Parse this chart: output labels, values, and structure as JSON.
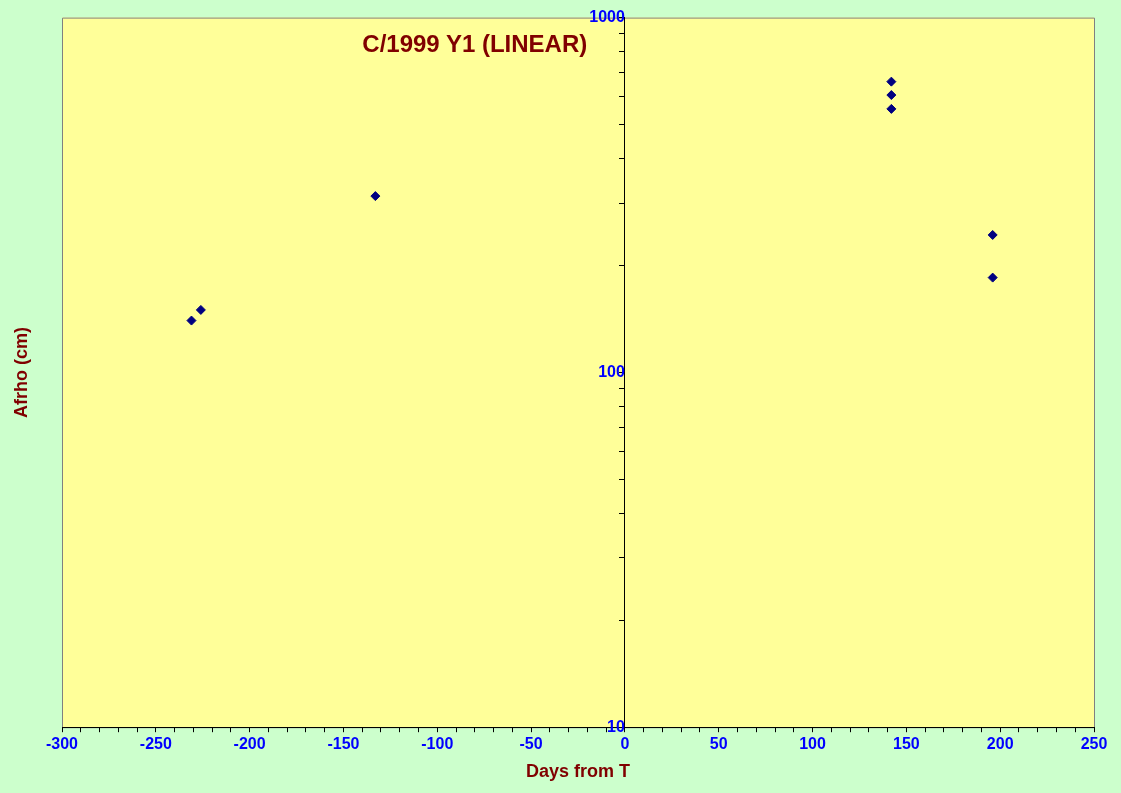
{
  "chart_data": {
    "type": "scatter",
    "title": "C/1999 Y1 (LINEAR)",
    "xlabel": "Days from T",
    "ylabel": "Afrho (cm)",
    "series": [
      {
        "color": "#000080",
        "x": [
          -231,
          -226,
          -133,
          142,
          142,
          142,
          196,
          196
        ],
        "values": [
          140,
          150,
          314,
          660,
          605,
          553,
          244,
          185
        ]
      }
    ],
    "xlim": [
      -300,
      250
    ],
    "xticks": [
      -300,
      {
        "value": -290,
        "label": null
      },
      {
        "value": -280,
        "label": null
      },
      {
        "value": -270,
        "label": null
      },
      {
        "value": -260,
        "label": null
      },
      -250,
      {
        "value": -240,
        "label": null
      },
      {
        "value": -230,
        "label": null
      },
      {
        "value": -220,
        "label": null
      },
      {
        "value": -210,
        "label": null
      },
      -200,
      {
        "value": -190,
        "label": null
      },
      {
        "value": -180,
        "label": null
      },
      {
        "value": -170,
        "label": null
      },
      {
        "value": -160,
        "label": null
      },
      -150,
      {
        "value": -140,
        "label": null
      },
      {
        "value": -130,
        "label": null
      },
      {
        "value": -120,
        "label": null
      },
      {
        "value": -110,
        "label": null
      },
      -100,
      {
        "value": -90,
        "label": null
      },
      {
        "value": -80,
        "label": null
      },
      {
        "value": -70,
        "label": null
      },
      {
        "value": -60,
        "label": null
      },
      -50,
      {
        "value": -40,
        "label": null
      },
      {
        "value": -30,
        "label": null
      },
      {
        "value": -20,
        "label": null
      },
      {
        "value": -10,
        "label": null
      },
      0,
      {
        "value": 10,
        "label": null
      },
      {
        "value": 20,
        "label": null
      },
      {
        "value": 30,
        "label": null
      },
      {
        "value": 40,
        "label": null
      },
      50,
      {
        "value": 60,
        "label": null
      },
      {
        "value": 70,
        "label": null
      },
      {
        "value": 80,
        "label": null
      },
      {
        "value": 90,
        "label": null
      },
      100,
      {
        "value": 110,
        "label": null
      },
      {
        "value": 120,
        "label": null
      },
      {
        "value": 130,
        "label": null
      },
      {
        "value": 140,
        "label": null
      },
      150,
      {
        "value": 160,
        "label": null
      },
      {
        "value": 170,
        "label": null
      },
      {
        "value": 180,
        "label": null
      },
      {
        "value": 190,
        "label": null
      },
      200,
      {
        "value": 210,
        "label": null
      },
      {
        "value": 220,
        "label": null
      },
      {
        "value": 230,
        "label": null
      },
      {
        "value": 240,
        "label": null
      },
      250
    ],
    "ylim": [
      10,
      1000
    ],
    "yticks": [
      10,
      {
        "value": 20,
        "label": null
      },
      {
        "value": 30,
        "label": null
      },
      {
        "value": 40,
        "label": null
      },
      {
        "value": 50,
        "label": null
      },
      {
        "value": 60,
        "label": null
      },
      {
        "value": 70,
        "label": null
      },
      {
        "value": 80,
        "label": null
      },
      {
        "value": 90,
        "label": null
      },
      100,
      {
        "value": 200,
        "label": null
      },
      {
        "value": 300,
        "label": null
      },
      {
        "value": 400,
        "label": null
      },
      {
        "value": 500,
        "label": null
      },
      {
        "value": 600,
        "label": null
      },
      {
        "value": 700,
        "label": null
      },
      {
        "value": 800,
        "label": null
      },
      {
        "value": 900,
        "label": null
      },
      1000
    ],
    "log": "y",
    "grid": false,
    "legend": false,
    "marker": "diamond"
  }
}
